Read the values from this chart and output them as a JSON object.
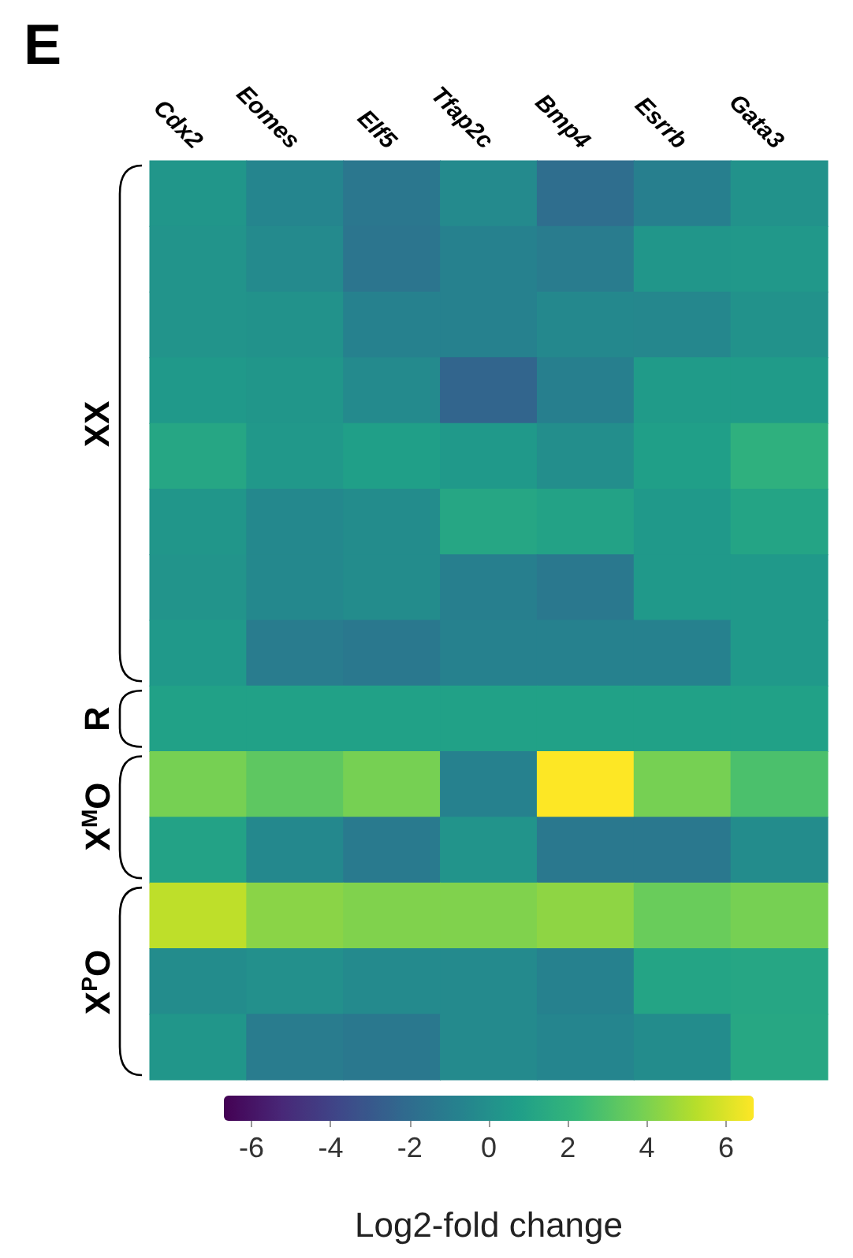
{
  "chart_data": {
    "type": "heatmap",
    "title": "E",
    "clabel": "Log2-fold change",
    "categories": [
      "Cdx2",
      "Eomes",
      "Elf5",
      "Tfap2c",
      "Bmp4",
      "Esrrb",
      "Gata3"
    ],
    "y_categories": [
      null,
      null,
      null,
      null,
      null,
      null,
      null,
      null,
      null,
      null,
      null,
      null,
      null,
      null
    ],
    "cells": [
      [
        0.3,
        -0.6,
        -1.4,
        -0.3,
        -1.9,
        -0.9,
        0.1
      ],
      [
        0.2,
        -0.3,
        -1.5,
        -0.8,
        -1.1,
        0.3,
        0.4
      ],
      [
        0.2,
        0.1,
        -0.8,
        -0.8,
        -0.4,
        -0.5,
        0.1
      ],
      [
        0.5,
        0.3,
        -0.3,
        -2.4,
        -0.9,
        0.6,
        0.6
      ],
      [
        1.2,
        0.4,
        0.8,
        0.5,
        -0.1,
        0.8,
        1.8
      ],
      [
        0.3,
        -0.4,
        -0.2,
        1.2,
        1.0,
        0.5,
        1.1
      ],
      [
        0.2,
        -0.4,
        -0.2,
        -0.9,
        -1.3,
        0.5,
        0.5
      ],
      [
        0.5,
        -1.1,
        -1.3,
        -0.8,
        -0.8,
        -0.8,
        0.5
      ],
      [
        0.9,
        0.9,
        0.9,
        0.9,
        0.9,
        0.9,
        0.9
      ],
      [
        3.9,
        3.3,
        3.9,
        -0.8,
        6.7,
        3.9,
        2.8
      ],
      [
        1.0,
        -0.4,
        -1.2,
        0.2,
        -1.3,
        -1.3,
        -0.2
      ],
      [
        5.4,
        4.3,
        4.1,
        4.1,
        4.4,
        3.6,
        3.9
      ],
      [
        -0.2,
        0.0,
        -0.3,
        -0.3,
        -0.8,
        1.1,
        1.2
      ],
      [
        0.3,
        -1.1,
        -1.3,
        -0.3,
        -0.6,
        -0.2,
        1.3
      ]
    ],
    "clim": [
      -6.7,
      6.7
    ],
    "cticks": [
      -6,
      -4,
      -2,
      0,
      2,
      4,
      6
    ],
    "annotations": [
      "XX",
      "R",
      "X$^{M}$O",
      "X$^{P}$O"
    ]
  }
}
